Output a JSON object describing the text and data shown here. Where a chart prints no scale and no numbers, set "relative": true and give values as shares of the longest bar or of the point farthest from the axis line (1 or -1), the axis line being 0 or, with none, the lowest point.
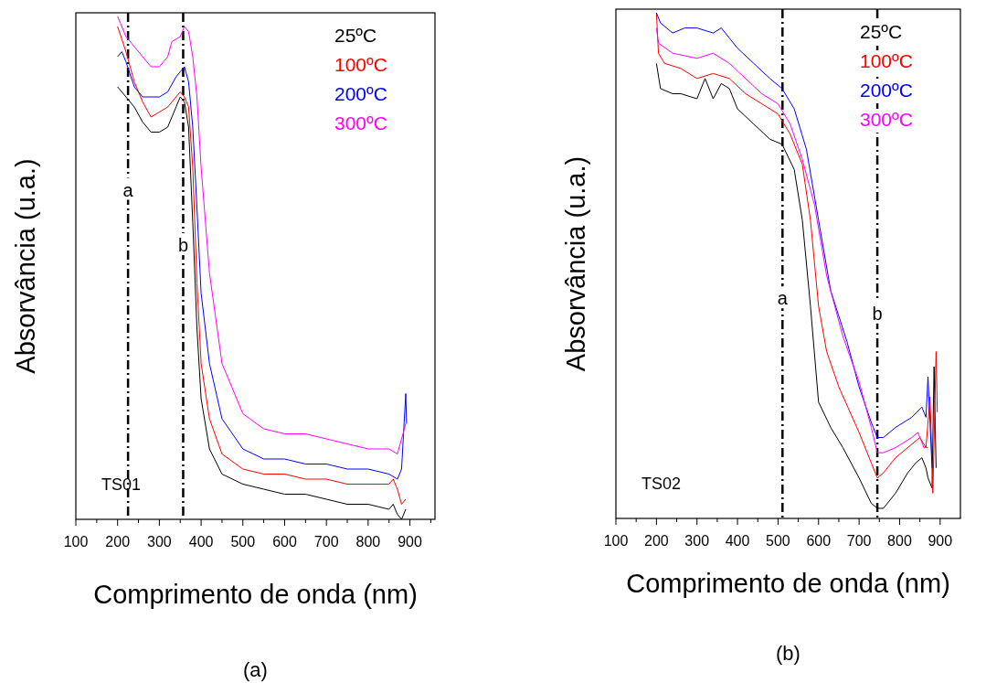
{
  "chart_data": [
    {
      "type": "line",
      "title": "(a)",
      "xlabel": "Comprimento de onda (nm)",
      "ylabel": "Absorvância (u.a.)",
      "relative": true,
      "legend": "top right",
      "xlim": [
        100,
        960
      ],
      "xticks": [
        100,
        {
          "value": 150,
          "label": null
        },
        200,
        {
          "value": 250,
          "label": null
        },
        300,
        {
          "value": 350,
          "label": null
        },
        400,
        {
          "value": 450,
          "label": null
        },
        500,
        {
          "value": 550,
          "label": null
        },
        600,
        {
          "value": 650,
          "label": null
        },
        700,
        {
          "value": 750,
          "label": null
        },
        800,
        {
          "value": 850,
          "label": null
        },
        900,
        {
          "value": 950,
          "label": null
        }
      ],
      "ref_lines": [
        {
          "axis": "x",
          "value": 225,
          "line_style": "dashed",
          "color": "#000000"
        },
        {
          "axis": "x",
          "value": 357,
          "line_style": "dashed",
          "color": "#000000"
        }
      ],
      "annotations": [
        "TS01",
        {
          "text": "a",
          "x": 225,
          "y": 0.65
        },
        {
          "text": "b",
          "x": 357,
          "y": 0.54
        }
      ],
      "series": [
        {
          "name": "25ºC",
          "color": "#000000",
          "x": [
            200,
            220,
            240,
            260,
            280,
            300,
            320,
            330,
            340,
            350,
            360,
            370,
            380,
            390,
            400,
            420,
            450,
            500,
            550,
            600,
            650,
            700,
            750,
            800,
            850,
            860,
            870,
            880,
            890
          ],
          "values": [
            0.86,
            0.84,
            0.82,
            0.79,
            0.77,
            0.77,
            0.78,
            0.8,
            0.82,
            0.84,
            0.83,
            0.78,
            0.59,
            0.38,
            0.24,
            0.14,
            0.09,
            0.07,
            0.06,
            0.05,
            0.05,
            0.04,
            0.03,
            0.03,
            0.02,
            0.03,
            0.01,
            0.0,
            0.02
          ]
        },
        {
          "name": "100ºC",
          "color": "#ff0000",
          "x": [
            200,
            220,
            240,
            260,
            280,
            300,
            320,
            340,
            350,
            360,
            370,
            380,
            390,
            400,
            420,
            450,
            500,
            550,
            600,
            650,
            700,
            750,
            800,
            850,
            860,
            870,
            880,
            890
          ],
          "values": [
            0.98,
            0.93,
            0.87,
            0.83,
            0.8,
            0.81,
            0.82,
            0.84,
            0.85,
            0.84,
            0.82,
            0.7,
            0.47,
            0.31,
            0.2,
            0.13,
            0.1,
            0.09,
            0.09,
            0.08,
            0.08,
            0.07,
            0.07,
            0.07,
            0.08,
            0.06,
            0.03,
            0.04
          ]
        },
        {
          "name": "200ºC",
          "color": "#0000ff",
          "x": [
            200,
            210,
            220,
            240,
            260,
            280,
            300,
            320,
            340,
            350,
            360,
            370,
            380,
            390,
            400,
            420,
            450,
            500,
            550,
            600,
            650,
            700,
            750,
            800,
            850,
            870,
            880,
            890,
            892
          ],
          "values": [
            0.92,
            0.93,
            0.91,
            0.86,
            0.84,
            0.84,
            0.84,
            0.85,
            0.88,
            0.89,
            0.9,
            0.87,
            0.78,
            0.62,
            0.45,
            0.31,
            0.2,
            0.14,
            0.12,
            0.12,
            0.11,
            0.11,
            0.1,
            0.1,
            0.09,
            0.08,
            0.1,
            0.25,
            0.19
          ]
        },
        {
          "name": "300ºC",
          "color": "#ff00ff",
          "x": [
            200,
            210,
            220,
            240,
            260,
            280,
            300,
            320,
            330,
            350,
            360,
            370,
            380,
            390,
            400,
            420,
            450,
            500,
            550,
            600,
            650,
            700,
            750,
            800,
            850,
            870,
            880,
            890
          ],
          "values": [
            1.0,
            0.98,
            0.96,
            0.94,
            0.92,
            0.9,
            0.9,
            0.92,
            0.95,
            0.96,
            0.98,
            0.97,
            0.92,
            0.84,
            0.7,
            0.49,
            0.31,
            0.21,
            0.18,
            0.17,
            0.17,
            0.16,
            0.15,
            0.14,
            0.14,
            0.13,
            0.16,
            0.19
          ]
        }
      ]
    },
    {
      "type": "line",
      "title": "(b)",
      "xlabel": "Comprimento de onda (nm)",
      "ylabel": "Absorvância (u.a.)",
      "relative": true,
      "legend": "top right",
      "xlim": [
        100,
        950
      ],
      "xticks": [
        100,
        {
          "value": 150,
          "label": null
        },
        200,
        {
          "value": 250,
          "label": null
        },
        300,
        {
          "value": 350,
          "label": null
        },
        400,
        {
          "value": 450,
          "label": null
        },
        500,
        {
          "value": 550,
          "label": null
        },
        600,
        {
          "value": 650,
          "label": null
        },
        700,
        {
          "value": 750,
          "label": null
        },
        800,
        {
          "value": 850,
          "label": null
        },
        900
      ],
      "ref_lines": [
        {
          "axis": "x",
          "value": 511,
          "line_style": "dashed",
          "color": "#000000"
        },
        {
          "axis": "x",
          "value": 745,
          "line_style": "dashed",
          "color": "#000000"
        }
      ],
      "annotations": [
        "TS02",
        {
          "text": "a",
          "x": 511,
          "y": 0.43
        },
        {
          "text": "b",
          "x": 745,
          "y": 0.4
        }
      ],
      "series": [
        {
          "name": "25ºC",
          "color": "#000000",
          "x": [
            200,
            210,
            240,
            260,
            300,
            320,
            340,
            360,
            380,
            400,
            440,
            480,
            510,
            540,
            560,
            580,
            600,
            630,
            660,
            700,
            730,
            745,
            760,
            790,
            820,
            840,
            855,
            865,
            870,
            880,
            885,
            890
          ],
          "values": [
            0.9,
            0.85,
            0.84,
            0.84,
            0.83,
            0.87,
            0.83,
            0.86,
            0.85,
            0.81,
            0.78,
            0.75,
            0.74,
            0.69,
            0.59,
            0.42,
            0.23,
            0.18,
            0.14,
            0.08,
            0.03,
            0.02,
            0.02,
            0.05,
            0.09,
            0.11,
            0.12,
            0.1,
            0.08,
            0.06,
            0.3,
            0.1
          ]
        },
        {
          "name": "100ºC",
          "color": "#ff0000",
          "x": [
            200,
            205,
            220,
            260,
            300,
            340,
            380,
            420,
            460,
            500,
            530,
            560,
            580,
            600,
            620,
            650,
            700,
            730,
            745,
            760,
            790,
            820,
            850,
            865,
            875,
            882,
            890,
            893
          ],
          "values": [
            1.0,
            0.92,
            0.9,
            0.89,
            0.87,
            0.88,
            0.87,
            0.84,
            0.82,
            0.8,
            0.76,
            0.7,
            0.59,
            0.42,
            0.33,
            0.26,
            0.17,
            0.11,
            0.08,
            0.09,
            0.12,
            0.14,
            0.16,
            0.14,
            0.24,
            0.05,
            0.33,
            0.21
          ]
        },
        {
          "name": "200ºC",
          "color": "#0000ff",
          "x": [
            200,
            210,
            240,
            270,
            300,
            340,
            360,
            400,
            440,
            480,
            510,
            540,
            570,
            600,
            630,
            670,
            700,
            730,
            745,
            760,
            790,
            830,
            855,
            865,
            870,
            880
          ],
          "values": [
            1.0,
            0.98,
            0.96,
            0.97,
            0.97,
            0.96,
            0.97,
            0.93,
            0.9,
            0.87,
            0.85,
            0.81,
            0.73,
            0.59,
            0.45,
            0.35,
            0.26,
            0.19,
            0.16,
            0.16,
            0.18,
            0.2,
            0.22,
            0.2,
            0.28,
            0.1
          ]
        },
        {
          "name": "300ºC",
          "color": "#ff00ff",
          "x": [
            200,
            205,
            240,
            300,
            340,
            380,
            420,
            460,
            500,
            530,
            560,
            590,
            620,
            660,
            700,
            730,
            745,
            760,
            790,
            830,
            845,
            860,
            870
          ],
          "values": [
            0.97,
            0.94,
            0.92,
            0.91,
            0.92,
            0.9,
            0.87,
            0.84,
            0.82,
            0.78,
            0.71,
            0.62,
            0.48,
            0.36,
            0.27,
            0.18,
            0.13,
            0.13,
            0.14,
            0.16,
            0.17,
            0.14,
            0.14
          ]
        }
      ]
    }
  ]
}
